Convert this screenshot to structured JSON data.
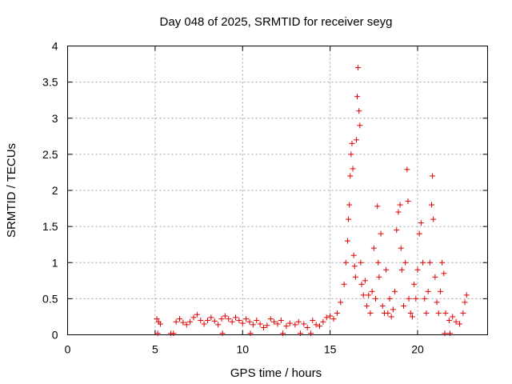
{
  "chart_data": {
    "type": "scatter",
    "title": "Day 048 of 2025, SRMTID for receiver seyg",
    "xlabel": "GPS time / hours",
    "ylabel": "SRMTID / TECUs",
    "xlim": [
      0,
      24
    ],
    "ylim": [
      0,
      4
    ],
    "xticks": [
      0,
      5,
      10,
      15,
      20
    ],
    "yticks": [
      0,
      0.5,
      1,
      1.5,
      2,
      2.5,
      3,
      3.5,
      4
    ],
    "ytick_labels": [
      "0",
      "0.5",
      "1",
      "1.5",
      "2",
      "2.5",
      "3",
      "3.5",
      "4"
    ],
    "grid": true,
    "marker": "+",
    "color": "#e00000",
    "series": [
      {
        "name": "SRMTID",
        "points": [
          [
            5.1,
            0.22
          ],
          [
            5.2,
            0.18
          ],
          [
            5.3,
            0.15
          ],
          [
            5.15,
            0.02
          ],
          [
            5.9,
            0.02
          ],
          [
            6.05,
            0.02
          ],
          [
            6.2,
            0.18
          ],
          [
            6.4,
            0.22
          ],
          [
            6.6,
            0.17
          ],
          [
            6.8,
            0.14
          ],
          [
            7.0,
            0.18
          ],
          [
            7.2,
            0.24
          ],
          [
            7.4,
            0.28
          ],
          [
            7.6,
            0.2
          ],
          [
            7.8,
            0.15
          ],
          [
            8.0,
            0.2
          ],
          [
            8.2,
            0.24
          ],
          [
            8.4,
            0.19
          ],
          [
            8.6,
            0.14
          ],
          [
            8.8,
            0.22
          ],
          [
            8.85,
            0.02
          ],
          [
            9.0,
            0.26
          ],
          [
            9.2,
            0.22
          ],
          [
            9.4,
            0.18
          ],
          [
            9.6,
            0.24
          ],
          [
            9.8,
            0.2
          ],
          [
            10.0,
            0.16
          ],
          [
            10.2,
            0.22
          ],
          [
            10.4,
            0.18
          ],
          [
            10.45,
            0.02
          ],
          [
            10.6,
            0.14
          ],
          [
            10.8,
            0.2
          ],
          [
            11.0,
            0.15
          ],
          [
            11.2,
            0.1
          ],
          [
            11.4,
            0.13
          ],
          [
            11.6,
            0.22
          ],
          [
            11.8,
            0.18
          ],
          [
            12.0,
            0.15
          ],
          [
            12.2,
            0.2
          ],
          [
            12.3,
            0.02
          ],
          [
            12.5,
            0.12
          ],
          [
            12.7,
            0.16
          ],
          [
            13.0,
            0.14
          ],
          [
            13.2,
            0.18
          ],
          [
            13.3,
            0.02
          ],
          [
            13.5,
            0.15
          ],
          [
            13.7,
            0.1
          ],
          [
            13.9,
            0.02
          ],
          [
            14.0,
            0.2
          ],
          [
            14.2,
            0.14
          ],
          [
            14.4,
            0.12
          ],
          [
            14.6,
            0.18
          ],
          [
            14.8,
            0.24
          ],
          [
            15.0,
            0.26
          ],
          [
            15.2,
            0.22
          ],
          [
            15.4,
            0.3
          ],
          [
            15.6,
            0.45
          ],
          [
            15.8,
            0.7
          ],
          [
            15.9,
            1.0
          ],
          [
            16.0,
            1.3
          ],
          [
            16.05,
            1.6
          ],
          [
            16.1,
            1.8
          ],
          [
            16.15,
            2.2
          ],
          [
            16.2,
            2.5
          ],
          [
            16.25,
            2.65
          ],
          [
            16.3,
            2.3
          ],
          [
            16.35,
            1.1
          ],
          [
            16.4,
            0.95
          ],
          [
            16.45,
            0.8
          ],
          [
            16.5,
            2.7
          ],
          [
            16.55,
            3.3
          ],
          [
            16.6,
            3.7
          ],
          [
            16.65,
            3.1
          ],
          [
            16.7,
            2.9
          ],
          [
            16.75,
            1.0
          ],
          [
            16.8,
            0.7
          ],
          [
            16.9,
            0.55
          ],
          [
            17.0,
            0.75
          ],
          [
            17.1,
            0.4
          ],
          [
            17.2,
            0.55
          ],
          [
            17.3,
            0.3
          ],
          [
            17.4,
            0.6
          ],
          [
            17.5,
            1.2
          ],
          [
            17.6,
            0.5
          ],
          [
            17.7,
            1.78
          ],
          [
            17.75,
            1.0
          ],
          [
            17.8,
            0.8
          ],
          [
            17.9,
            1.4
          ],
          [
            18.0,
            0.4
          ],
          [
            18.1,
            0.3
          ],
          [
            18.2,
            0.9
          ],
          [
            18.3,
            0.3
          ],
          [
            18.4,
            0.5
          ],
          [
            18.5,
            0.25
          ],
          [
            18.6,
            0.35
          ],
          [
            18.7,
            0.6
          ],
          [
            18.8,
            1.45
          ],
          [
            18.9,
            1.7
          ],
          [
            19.0,
            1.8
          ],
          [
            19.05,
            1.2
          ],
          [
            19.1,
            0.9
          ],
          [
            19.2,
            0.4
          ],
          [
            19.3,
            1.0
          ],
          [
            19.4,
            2.29
          ],
          [
            19.45,
            1.85
          ],
          [
            19.5,
            0.5
          ],
          [
            19.6,
            0.3
          ],
          [
            19.7,
            0.25
          ],
          [
            19.8,
            0.7
          ],
          [
            19.9,
            0.5
          ],
          [
            20.0,
            0.9
          ],
          [
            20.1,
            1.4
          ],
          [
            20.2,
            1.55
          ],
          [
            20.3,
            1.0
          ],
          [
            20.4,
            0.5
          ],
          [
            20.5,
            0.3
          ],
          [
            20.6,
            0.6
          ],
          [
            20.7,
            1.0
          ],
          [
            20.8,
            1.8
          ],
          [
            20.85,
            2.2
          ],
          [
            20.9,
            1.6
          ],
          [
            21.0,
            0.8
          ],
          [
            21.1,
            0.45
          ],
          [
            21.2,
            0.3
          ],
          [
            21.3,
            0.6
          ],
          [
            21.4,
            1.0
          ],
          [
            21.5,
            0.85
          ],
          [
            21.55,
            0.02
          ],
          [
            21.6,
            0.3
          ],
          [
            21.8,
            0.2
          ],
          [
            21.85,
            0.02
          ],
          [
            22.0,
            0.25
          ],
          [
            22.2,
            0.18
          ],
          [
            22.4,
            0.15
          ],
          [
            22.6,
            0.3
          ],
          [
            22.7,
            0.45
          ],
          [
            22.8,
            0.55
          ]
        ]
      }
    ]
  }
}
